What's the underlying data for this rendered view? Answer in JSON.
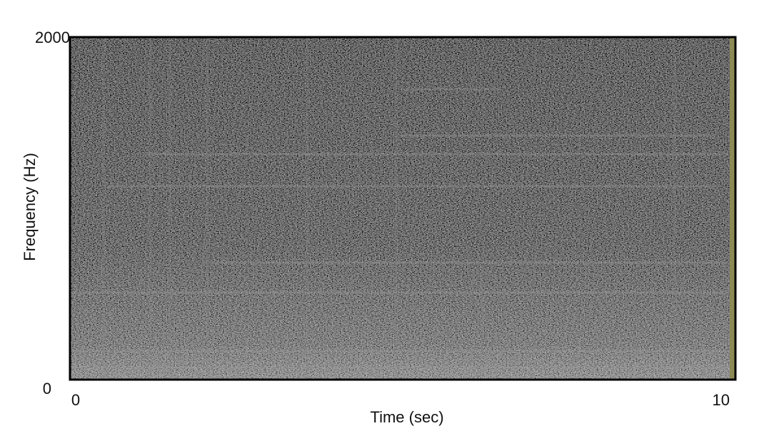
{
  "chart_data": {
    "type": "spectrogram",
    "x_label": "Time (sec)",
    "y_label": "Frequency (Hz)",
    "xlim": [
      0,
      10
    ],
    "ylim": [
      0,
      2000
    ],
    "xticks": [
      0,
      10
    ],
    "yticks": [
      0,
      2000
    ]
  }
}
